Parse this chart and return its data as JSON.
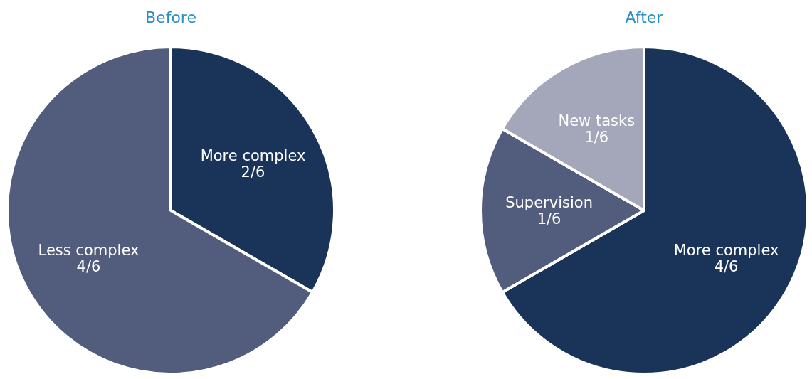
{
  "chart_data": [
    {
      "type": "pie",
      "title": "Before",
      "categories": [
        "More complex 2/6",
        "Less complex 4/6"
      ],
      "values": [
        33.33,
        66.67
      ],
      "colors": [
        "#1a3358",
        "#525c7c"
      ]
    },
    {
      "type": "pie",
      "title": "After",
      "categories": [
        "More complex 4/6",
        "Supervision 1/6",
        "New tasks 1/6"
      ],
      "values": [
        66.67,
        16.67,
        16.67
      ],
      "colors": [
        "#1a3358",
        "#525c7c",
        "#a4a7ba"
      ]
    }
  ]
}
